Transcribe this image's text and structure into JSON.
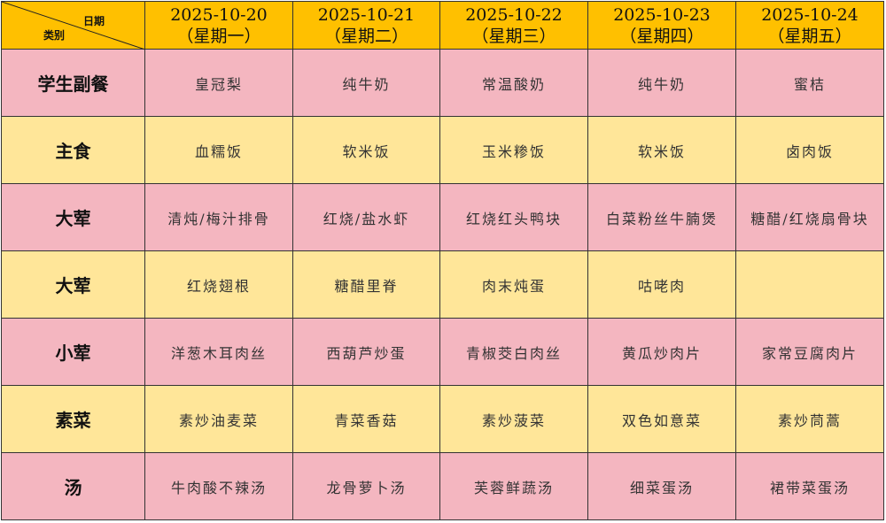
{
  "corner": {
    "date_label": "日期",
    "category_label": "类别"
  },
  "days": [
    {
      "date": "2025-10-20",
      "weekday": "（星期一）"
    },
    {
      "date": "2025-10-21",
      "weekday": "（星期二）"
    },
    {
      "date": "2025-10-22",
      "weekday": "（星期三）"
    },
    {
      "date": "2025-10-23",
      "weekday": "（星期四）"
    },
    {
      "date": "2025-10-24",
      "weekday": "（星期五）"
    }
  ],
  "rows": [
    {
      "category": "学生副餐",
      "style": "pink",
      "items": [
        "皇冠梨",
        "纯牛奶",
        "常温酸奶",
        "纯牛奶",
        "蜜桔"
      ]
    },
    {
      "category": "主食",
      "style": "yellow",
      "items": [
        "血糯饭",
        "软米饭",
        "玉米糁饭",
        "软米饭",
        "卤肉饭"
      ]
    },
    {
      "category": "大荤",
      "style": "pink",
      "items": [
        "清炖/梅汁排骨",
        "红烧/盐水虾",
        "红烧红头鸭块",
        "白菜粉丝牛腩煲",
        "糖醋/红烧扇骨块"
      ]
    },
    {
      "category": "大荤",
      "style": "yellow",
      "items": [
        "红烧翅根",
        "糖醋里脊",
        "肉末炖蛋",
        "咕咾肉",
        ""
      ]
    },
    {
      "category": "小荤",
      "style": "pink",
      "items": [
        "洋葱木耳肉丝",
        "西葫芦炒蛋",
        "青椒茭白肉丝",
        "黄瓜炒肉片",
        "家常豆腐肉片"
      ]
    },
    {
      "category": "素菜",
      "style": "yellow",
      "items": [
        "素炒油麦菜",
        "青菜香菇",
        "素炒菠菜",
        "双色如意菜",
        "素炒茼蒿"
      ]
    },
    {
      "category": "汤",
      "style": "pink",
      "items": [
        "牛肉酸不辣汤",
        "龙骨萝卜汤",
        "芙蓉鲜蔬汤",
        "细菜蛋汤",
        "裙带菜蛋汤"
      ]
    }
  ],
  "colors": {
    "header": "#FFC000",
    "pink": "#F4B6C0",
    "yellow": "#FFE699"
  }
}
